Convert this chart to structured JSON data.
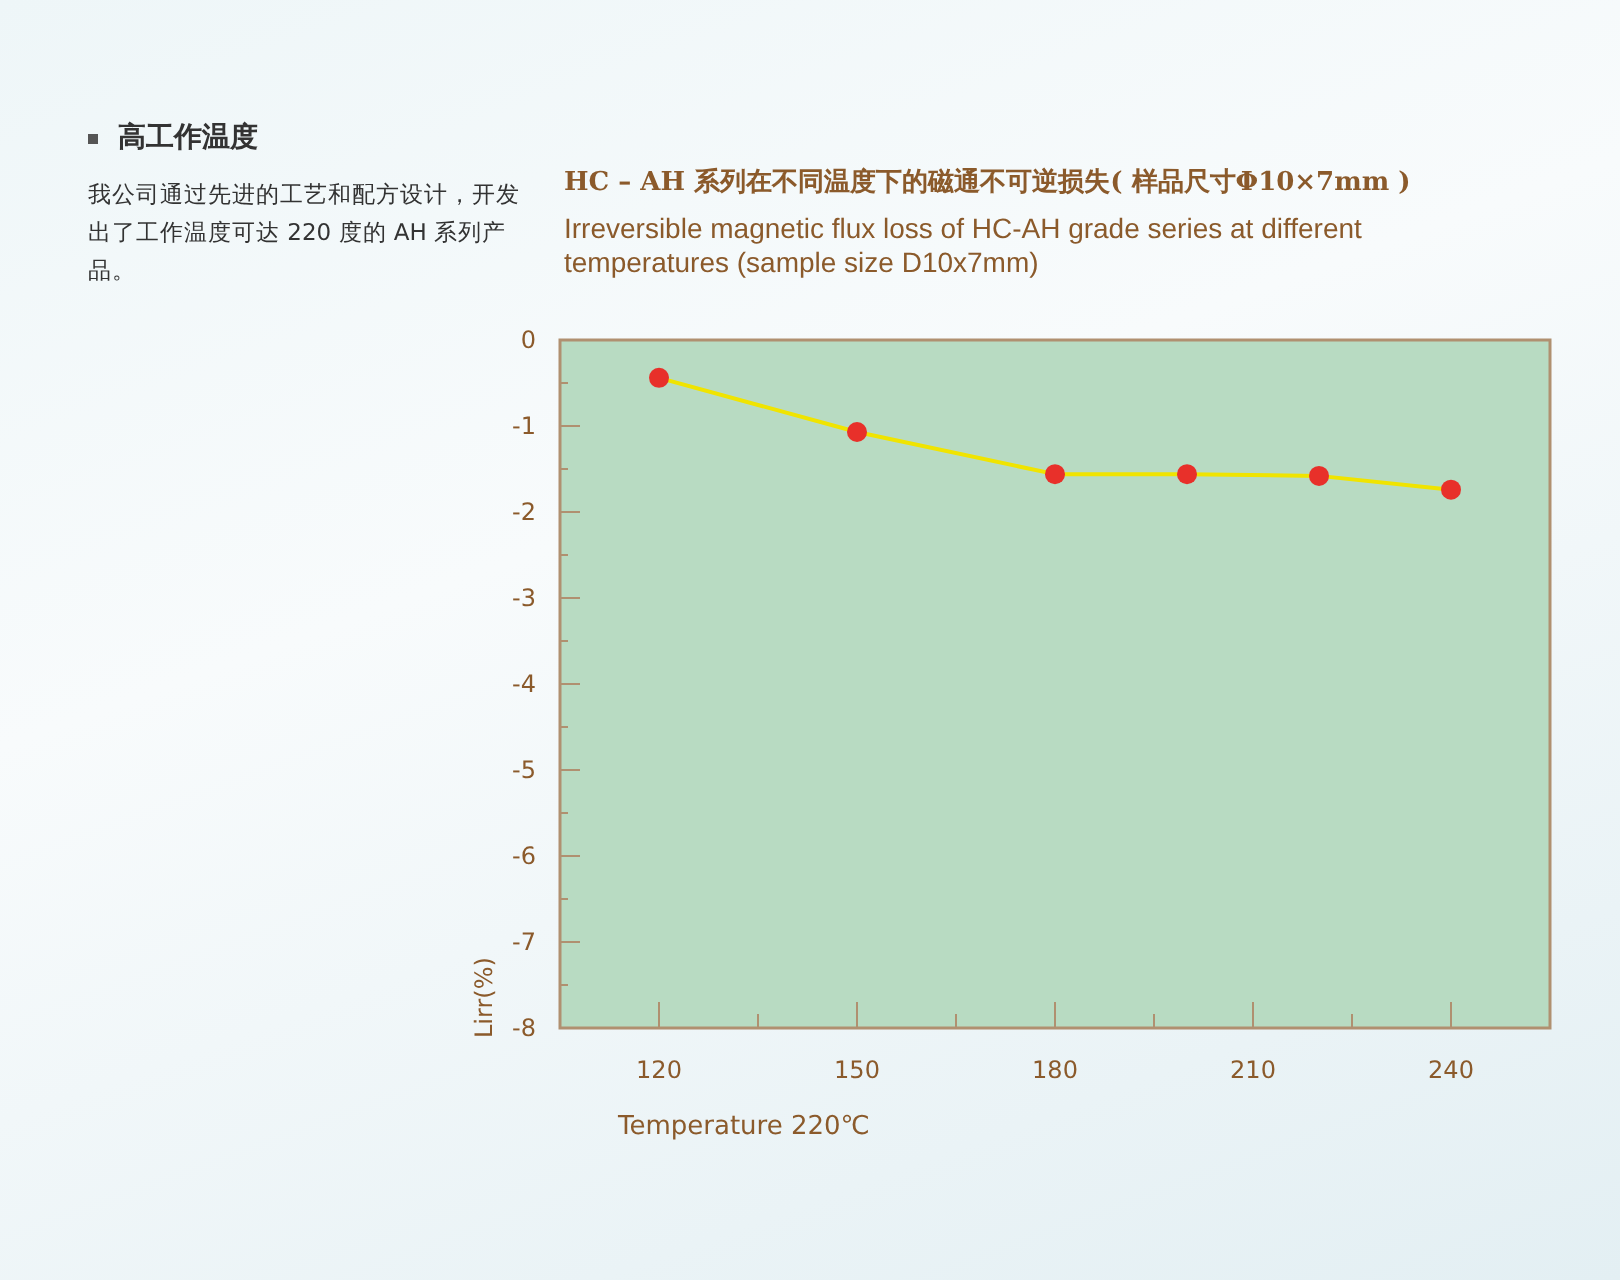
{
  "chart_data": {
    "type": "line",
    "title": "HC  – AH 系列在不同温度下的磁通不可逆损失( 样品尺寸Φ10×7mm )",
    "subtitle": "Irreversible magnetic flux loss of HC-AH grade series at different temperatures (sample size D10x7mm)",
    "xlabel": "Temperature 220℃",
    "ylabel": "Lirr(%)",
    "annotations": [
      "高工作温度",
      "我公司通过先进的工艺和配方设计，开发出了工作温度可达 220 度的 AH 系列产品。"
    ],
    "x": [
      120,
      150,
      180,
      200,
      220,
      240
    ],
    "series": [
      {
        "color": "#f0e400",
        "colors": [
          "#e8302a",
          "#e8302a",
          "#e8302a",
          "#e8302a",
          "#e8302a",
          "#e8302a"
        ],
        "values": [
          -0.44,
          -1.07,
          -1.56,
          -1.56,
          -1.58,
          -1.74
        ]
      }
    ],
    "marker": "circle",
    "line_style": "solid",
    "grid": false,
    "xlim": [
      105,
      255
    ],
    "xticks": [
      120,
      {
        "value": 135,
        "label": null
      },
      150,
      {
        "value": 165,
        "label": null
      },
      180,
      {
        "value": 195,
        "label": null
      },
      210,
      {
        "value": 225,
        "label": null
      },
      240
    ],
    "ylim": [
      -8,
      0
    ],
    "yticks": [
      0,
      {
        "value": -0.5,
        "label": null
      },
      -1,
      {
        "value": -1.5,
        "label": null
      },
      -2,
      {
        "value": -2.5,
        "label": null
      },
      -3,
      {
        "value": -3.5,
        "label": null
      },
      -4,
      {
        "value": -4.5,
        "label": null
      },
      -5,
      {
        "value": -5.5,
        "label": null
      },
      -6,
      {
        "value": -6.5,
        "label": null
      },
      -7,
      {
        "value": -7.5,
        "label": null
      },
      -8
    ]
  }
}
